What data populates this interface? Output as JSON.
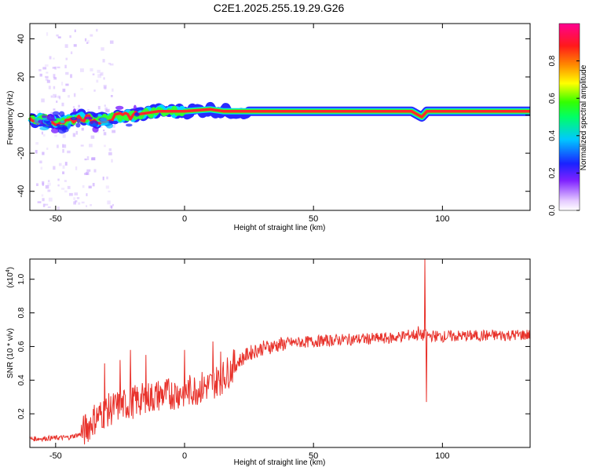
{
  "title": "C2E1.2025.255.19.29.G26",
  "chart_data": [
    {
      "type": "heatmap",
      "name": "spectrogram",
      "xlabel": "Height of straight line (km)",
      "ylabel": "Frequency (Hz)",
      "xlim": [
        -60,
        134
      ],
      "ylim": [
        -50,
        48
      ],
      "xticks": [
        -50,
        0,
        50,
        100
      ],
      "yticks": [
        -40,
        -20,
        0,
        20,
        40
      ],
      "ridge": [
        {
          "x": -60,
          "y": -3
        },
        {
          "x": -55,
          "y": -2
        },
        {
          "x": -50,
          "y": -4
        },
        {
          "x": -45,
          "y": -3
        },
        {
          "x": -40,
          "y": -1
        },
        {
          "x": -35,
          "y": -3
        },
        {
          "x": -30,
          "y": -2
        },
        {
          "x": -25,
          "y": -1
        },
        {
          "x": -20,
          "y": 0
        },
        {
          "x": -15,
          "y": 1
        },
        {
          "x": -10,
          "y": 2
        },
        {
          "x": 0,
          "y": 2
        },
        {
          "x": 10,
          "y": 3
        },
        {
          "x": 15,
          "y": 2
        },
        {
          "x": 20,
          "y": 2
        },
        {
          "x": 50,
          "y": 2
        },
        {
          "x": 88,
          "y": 2
        },
        {
          "x": 92,
          "y": -1
        },
        {
          "x": 94,
          "y": 2
        },
        {
          "x": 134,
          "y": 2
        }
      ],
      "colorbar": {
        "label": "Normalized spectral amplitude",
        "ticks": [
          "0.0",
          "0.2",
          "0.4",
          "0.6",
          "0.8"
        ],
        "range": [
          0,
          1
        ]
      }
    },
    {
      "type": "line",
      "name": "snr",
      "xlabel": "Height of straight line (km)",
      "ylabel": "SNR (10 * v/v)",
      "yscale_label": "(x10",
      "yscale_exp": "4",
      "yscale_close": ")",
      "xlim": [
        -60,
        134
      ],
      "ylim": [
        0,
        1.12
      ],
      "xticks": [
        -50,
        0,
        50,
        100
      ],
      "yticks": [
        0.2,
        0.4,
        0.6,
        0.8,
        1.0
      ],
      "series": [
        {
          "name": "SNR",
          "color": "#e8322b",
          "trend": [
            {
              "x": -60,
              "y": 0.05
            },
            {
              "x": -45,
              "y": 0.06
            },
            {
              "x": -40,
              "y": 0.08
            },
            {
              "x": -35,
              "y": 0.17
            },
            {
              "x": -30,
              "y": 0.22
            },
            {
              "x": -20,
              "y": 0.27
            },
            {
              "x": -10,
              "y": 0.31
            },
            {
              "x": 0,
              "y": 0.33
            },
            {
              "x": 10,
              "y": 0.37
            },
            {
              "x": 15,
              "y": 0.42
            },
            {
              "x": 20,
              "y": 0.5
            },
            {
              "x": 25,
              "y": 0.56
            },
            {
              "x": 30,
              "y": 0.59
            },
            {
              "x": 40,
              "y": 0.62
            },
            {
              "x": 50,
              "y": 0.63
            },
            {
              "x": 60,
              "y": 0.64
            },
            {
              "x": 80,
              "y": 0.65
            },
            {
              "x": 88,
              "y": 0.67
            },
            {
              "x": 100,
              "y": 0.66
            },
            {
              "x": 134,
              "y": 0.67
            }
          ],
          "spikes": [
            {
              "x": -31,
              "y": 0.5
            },
            {
              "x": -25,
              "y": 0.52
            },
            {
              "x": -21,
              "y": 0.58
            },
            {
              "x": -15,
              "y": 0.55
            },
            {
              "x": 0,
              "y": 0.58
            },
            {
              "x": 11,
              "y": 0.63
            },
            {
              "x": 14,
              "y": 0.57
            },
            {
              "x": 90.5,
              "y": 0.72
            },
            {
              "x": 93.2,
              "y": 1.12
            },
            {
              "x": 93.8,
              "y": 0.27
            }
          ]
        }
      ]
    }
  ],
  "colors": {
    "line": "#e8322b",
    "axis": "#000000",
    "background": "#ffffff"
  }
}
